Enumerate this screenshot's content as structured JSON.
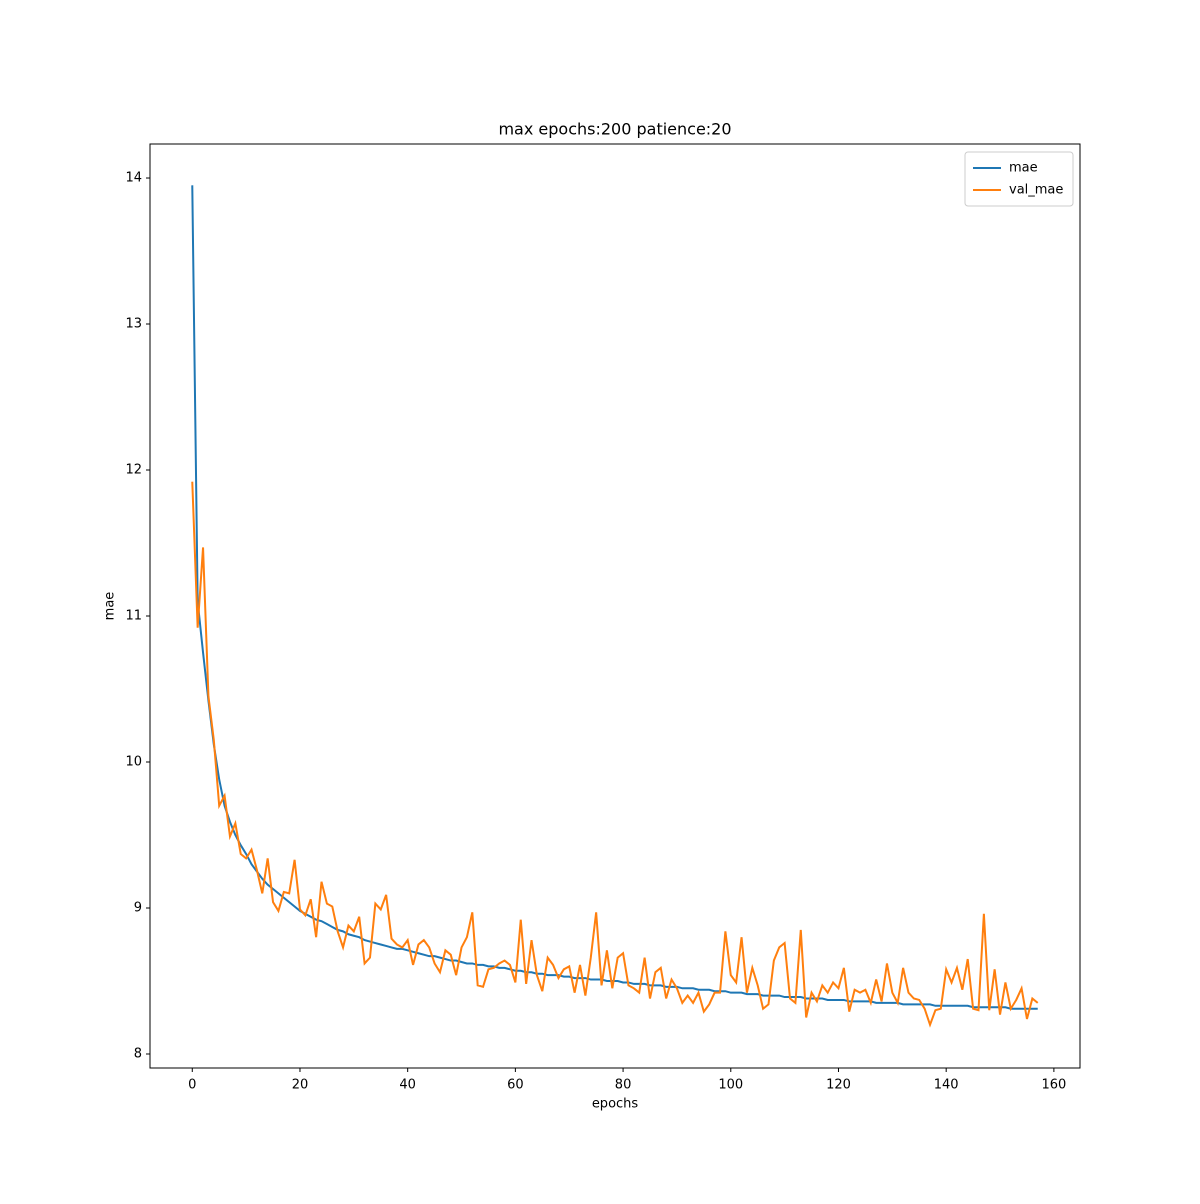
{
  "chart_data": {
    "type": "line",
    "title": "max epochs:200 patience:20",
    "x_label": "epochs",
    "y_label": "mae",
    "x": [
      0,
      1,
      2,
      3,
      4,
      5,
      6,
      7,
      8,
      9,
      10,
      11,
      12,
      13,
      14,
      15,
      16,
      17,
      18,
      19,
      20,
      21,
      22,
      23,
      24,
      25,
      26,
      27,
      28,
      29,
      30,
      31,
      32,
      33,
      34,
      35,
      36,
      37,
      38,
      39,
      40,
      41,
      42,
      43,
      44,
      45,
      46,
      47,
      48,
      49,
      50,
      51,
      52,
      53,
      54,
      55,
      56,
      57,
      58,
      59,
      60,
      61,
      62,
      63,
      64,
      65,
      66,
      67,
      68,
      69,
      70,
      71,
      72,
      73,
      74,
      75,
      76,
      77,
      78,
      79,
      80,
      81,
      82,
      83,
      84,
      85,
      86,
      87,
      88,
      89,
      90,
      91,
      92,
      93,
      94,
      95,
      96,
      97,
      98,
      99,
      100,
      101,
      102,
      103,
      104,
      105,
      106,
      107,
      108,
      109,
      110,
      111,
      112,
      113,
      114,
      115,
      116,
      117,
      118,
      119,
      120,
      121,
      122,
      123,
      124,
      125,
      126,
      127,
      128,
      129,
      130,
      131,
      132,
      133,
      134,
      135,
      136,
      137,
      138,
      139,
      140,
      141,
      142,
      143,
      144,
      145,
      146,
      147,
      148,
      149,
      150,
      151,
      152,
      153,
      154,
      155,
      156,
      157
    ],
    "series": [
      {
        "name": "mae",
        "color": "#1f77b4",
        "values": [
          13.95,
          11.1,
          10.75,
          10.42,
          10.12,
          9.88,
          9.7,
          9.59,
          9.5,
          9.43,
          9.37,
          9.3,
          9.25,
          9.2,
          9.16,
          9.13,
          9.1,
          9.07,
          9.04,
          9.01,
          8.98,
          8.96,
          8.94,
          8.92,
          8.91,
          8.89,
          8.87,
          8.85,
          8.84,
          8.82,
          8.81,
          8.8,
          8.78,
          8.77,
          8.76,
          8.75,
          8.74,
          8.73,
          8.72,
          8.72,
          8.71,
          8.7,
          8.69,
          8.68,
          8.67,
          8.67,
          8.66,
          8.65,
          8.64,
          8.64,
          8.63,
          8.62,
          8.62,
          8.61,
          8.61,
          8.6,
          8.6,
          8.59,
          8.59,
          8.58,
          8.57,
          8.57,
          8.56,
          8.56,
          8.55,
          8.55,
          8.54,
          8.54,
          8.54,
          8.53,
          8.53,
          8.52,
          8.52,
          8.52,
          8.51,
          8.51,
          8.51,
          8.5,
          8.5,
          8.5,
          8.49,
          8.49,
          8.48,
          8.48,
          8.48,
          8.47,
          8.47,
          8.47,
          8.46,
          8.46,
          8.46,
          8.45,
          8.45,
          8.45,
          8.44,
          8.44,
          8.44,
          8.43,
          8.43,
          8.43,
          8.42,
          8.42,
          8.42,
          8.41,
          8.41,
          8.41,
          8.4,
          8.4,
          8.4,
          8.4,
          8.39,
          8.39,
          8.39,
          8.39,
          8.38,
          8.38,
          8.38,
          8.38,
          8.37,
          8.37,
          8.37,
          8.37,
          8.36,
          8.36,
          8.36,
          8.36,
          8.36,
          8.35,
          8.35,
          8.35,
          8.35,
          8.35,
          8.34,
          8.34,
          8.34,
          8.34,
          8.34,
          8.34,
          8.33,
          8.33,
          8.33,
          8.33,
          8.33,
          8.33,
          8.33,
          8.32,
          8.32,
          8.32,
          8.32,
          8.32,
          8.32,
          8.32,
          8.31,
          8.31,
          8.31,
          8.31,
          8.31,
          8.31
        ]
      },
      {
        "name": "val_mae",
        "color": "#ff7f0e",
        "values": [
          11.92,
          10.92,
          11.47,
          10.45,
          10.15,
          9.7,
          9.77,
          9.49,
          9.58,
          9.37,
          9.34,
          9.4,
          9.26,
          9.1,
          9.34,
          9.04,
          8.98,
          9.11,
          9.1,
          9.33,
          8.99,
          8.95,
          9.06,
          8.8,
          9.18,
          9.03,
          9.01,
          8.84,
          8.73,
          8.88,
          8.84,
          8.94,
          8.62,
          8.66,
          9.03,
          8.99,
          9.09,
          8.79,
          8.75,
          8.73,
          8.78,
          8.61,
          8.75,
          8.78,
          8.73,
          8.62,
          8.56,
          8.71,
          8.68,
          8.54,
          8.73,
          8.8,
          8.97,
          8.47,
          8.46,
          8.58,
          8.59,
          8.62,
          8.64,
          8.61,
          8.49,
          8.92,
          8.48,
          8.78,
          8.54,
          8.43,
          8.66,
          8.61,
          8.52,
          8.58,
          8.6,
          8.42,
          8.61,
          8.4,
          8.66,
          8.97,
          8.47,
          8.71,
          8.45,
          8.66,
          8.69,
          8.47,
          8.45,
          8.42,
          8.66,
          8.38,
          8.56,
          8.59,
          8.38,
          8.51,
          8.45,
          8.35,
          8.4,
          8.35,
          8.42,
          8.29,
          8.34,
          8.42,
          8.42,
          8.84,
          8.54,
          8.49,
          8.8,
          8.42,
          8.59,
          8.47,
          8.31,
          8.34,
          8.64,
          8.73,
          8.76,
          8.38,
          8.35,
          8.85,
          8.25,
          8.42,
          8.36,
          8.47,
          8.42,
          8.49,
          8.45,
          8.59,
          8.29,
          8.44,
          8.42,
          8.44,
          8.35,
          8.51,
          8.36,
          8.62,
          8.42,
          8.35,
          8.59,
          8.42,
          8.38,
          8.37,
          8.31,
          8.2,
          8.3,
          8.31,
          8.58,
          8.49,
          8.59,
          8.44,
          8.65,
          8.31,
          8.3,
          8.96,
          8.3,
          8.58,
          8.27,
          8.49,
          8.31,
          8.37,
          8.45,
          8.24,
          8.38,
          8.35
        ]
      }
    ],
    "xlim": [
      -7.85,
      164.85
    ],
    "ylim": [
      7.904,
      14.233
    ],
    "xticks": [
      0,
      20,
      40,
      60,
      80,
      100,
      120,
      140,
      160
    ],
    "yticks": [
      8,
      9,
      10,
      11,
      12,
      13,
      14
    ],
    "legend": "upper right"
  }
}
